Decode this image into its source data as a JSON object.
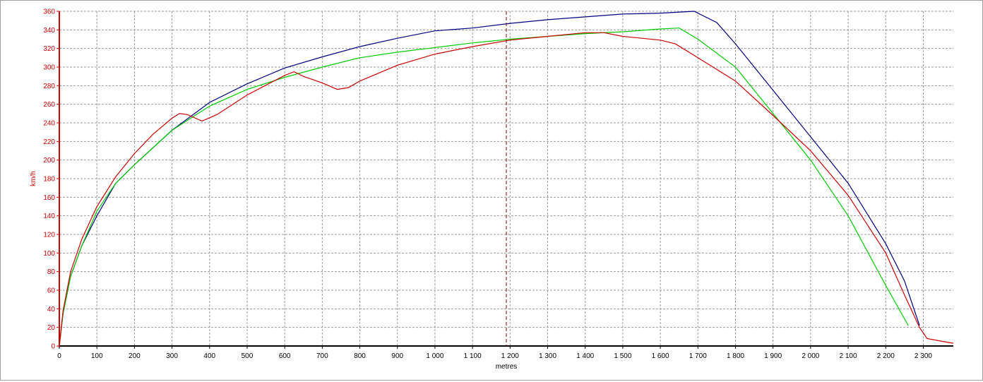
{
  "chart_data": {
    "type": "line",
    "x_label": "metres",
    "y_label": "km/h",
    "xlim": [
      0,
      2380
    ],
    "ylim": [
      0,
      360
    ],
    "xticks": [
      0,
      100,
      200,
      300,
      400,
      500,
      600,
      700,
      800,
      900,
      {
        "value": 1000,
        "label": "1 000"
      },
      {
        "value": 1100,
        "label": "1 100"
      },
      {
        "value": 1200,
        "label": "1 200"
      },
      {
        "value": 1300,
        "label": "1 300"
      },
      {
        "value": 1400,
        "label": "1 400"
      },
      {
        "value": 1500,
        "label": "1 500"
      },
      {
        "value": 1600,
        "label": "1 600"
      },
      {
        "value": 1700,
        "label": "1 700"
      },
      {
        "value": 1800,
        "label": "1 800"
      },
      {
        "value": 1900,
        "label": "1 900"
      },
      {
        "value": 2000,
        "label": "2 000"
      },
      {
        "value": 2100,
        "label": "2 100"
      },
      {
        "value": 2200,
        "label": "2 200"
      },
      {
        "value": 2300,
        "label": "2 300"
      }
    ],
    "yticks": [
      0,
      20,
      40,
      60,
      80,
      100,
      120,
      140,
      160,
      180,
      200,
      220,
      240,
      260,
      280,
      300,
      320,
      340,
      360
    ],
    "grid": true,
    "cursor_x": 1190,
    "axis_color": "#cc0000",
    "series": [
      {
        "color": "#000080",
        "x": [
          0,
          10,
          30,
          60,
          100,
          150,
          200,
          300,
          400,
          500,
          600,
          700,
          800,
          900,
          1000,
          1100,
          1200,
          1300,
          1400,
          1500,
          1600,
          1690,
          1750,
          1800,
          1900,
          2000,
          2100,
          2200,
          2250,
          2290
        ],
        "values": [
          0,
          35,
          75,
          108,
          140,
          175,
          195,
          232,
          262,
          282,
          299,
          311,
          322,
          331,
          339,
          342,
          347,
          351,
          354,
          357,
          358,
          360,
          348,
          325,
          275,
          225,
          175,
          110,
          70,
          22
        ]
      },
      {
        "color": "#00cc00",
        "x": [
          0,
          10,
          30,
          60,
          100,
          150,
          200,
          300,
          400,
          500,
          600,
          700,
          800,
          900,
          1000,
          1100,
          1200,
          1300,
          1400,
          1500,
          1600,
          1650,
          1700,
          1800,
          1900,
          2000,
          2100,
          2200,
          2260
        ],
        "values": [
          0,
          35,
          75,
          108,
          145,
          175,
          195,
          232,
          258,
          276,
          289,
          300,
          310,
          316,
          321,
          326,
          330,
          333,
          336,
          338,
          341,
          342,
          330,
          300,
          250,
          200,
          140,
          65,
          22
        ]
      },
      {
        "color": "#cc0000",
        "x": [
          0,
          10,
          30,
          60,
          100,
          150,
          200,
          250,
          300,
          320,
          340,
          380,
          420,
          500,
          600,
          625,
          650,
          700,
          740,
          770,
          800,
          900,
          1000,
          1100,
          1200,
          1300,
          1400,
          1450,
          1500,
          1600,
          1640,
          1700,
          1800,
          1900,
          2000,
          2100,
          2200,
          2250,
          2290,
          2310,
          2350,
          2380
        ],
        "values": [
          0,
          38,
          80,
          115,
          150,
          182,
          207,
          228,
          245,
          250,
          249,
          242,
          249,
          270,
          291,
          295,
          290,
          283,
          276,
          278,
          285,
          302,
          314,
          322,
          329,
          333,
          337,
          337,
          333,
          329,
          325,
          310,
          285,
          248,
          210,
          162,
          100,
          55,
          20,
          8,
          5,
          3
        ]
      }
    ]
  }
}
